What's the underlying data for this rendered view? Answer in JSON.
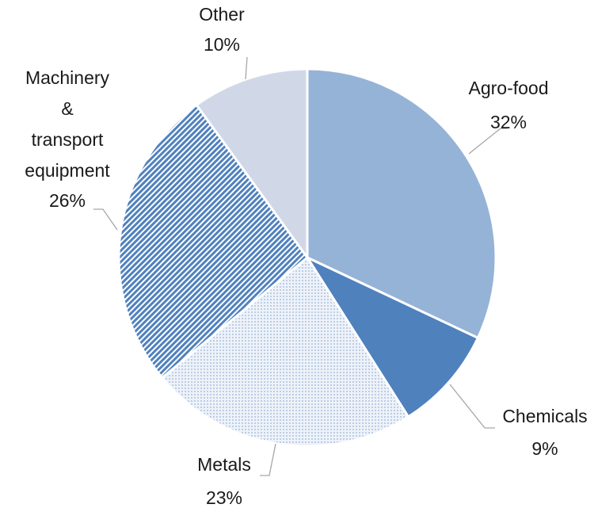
{
  "chart_data": {
    "type": "pie",
    "categories": [
      "Agro-food",
      "Chemicals",
      "Metals",
      "Machinery & transport equipment",
      "Other"
    ],
    "values": [
      32,
      9,
      23,
      26,
      10
    ],
    "value_labels": [
      "32%",
      "9%",
      "23%",
      "26%",
      "10%"
    ],
    "colors": [
      "#95b3d7",
      "#4f81bd",
      "url(#dots)",
      "url(#stripes)",
      "#d0d8e8"
    ]
  }
}
